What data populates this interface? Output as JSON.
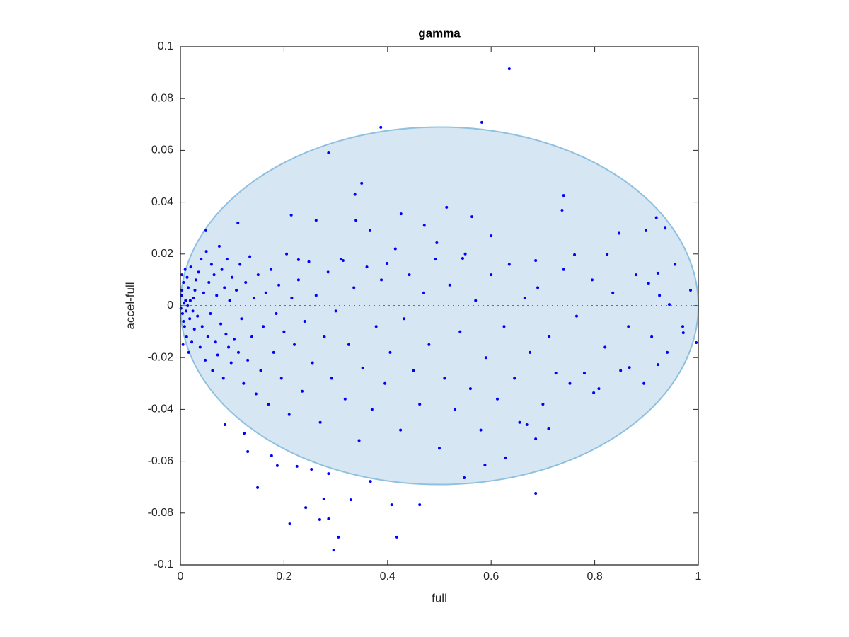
{
  "chart_data": {
    "type": "scatter",
    "title": "gamma",
    "x_label": "full",
    "y_label": "accel-full",
    "xlim": [
      0,
      1
    ],
    "ylim": [
      -0.1,
      0.1
    ],
    "xticks": [
      0,
      0.2,
      0.4,
      0.6,
      0.8,
      1
    ],
    "yticks": [
      -0.1,
      -0.08,
      -0.06,
      -0.04,
      -0.02,
      0,
      0.02,
      0.04,
      0.06,
      0.08,
      0.1
    ],
    "color": "#0000ff",
    "ellipse": {
      "center": [
        0.5,
        0
      ],
      "radii": [
        0.5,
        0.069
      ],
      "fill": "#d6e6f3",
      "stroke": "#8fc0e0"
    },
    "reference_line": {
      "value": 0,
      "color": "#ff3333"
    },
    "x": [
      0.002,
      0.004,
      0.006,
      0.008,
      0.003,
      0.01,
      0.012,
      0.005,
      0.015,
      0.018,
      0.007,
      0.001,
      0.009,
      0.013,
      0.02,
      0.022,
      0.016,
      0.025,
      0.027,
      0.03,
      0.011,
      0.014,
      0.006,
      0.003,
      0.019,
      0.024,
      0.028,
      0.033,
      0.035,
      0.038,
      0.04,
      0.042,
      0.045,
      0.048,
      0.05,
      0.053,
      0.055,
      0.058,
      0.06,
      0.062,
      0.065,
      0.068,
      0.07,
      0.072,
      0.075,
      0.078,
      0.08,
      0.083,
      0.085,
      0.088,
      0.09,
      0.093,
      0.095,
      0.098,
      0.1,
      0.104,
      0.108,
      0.112,
      0.115,
      0.118,
      0.122,
      0.126,
      0.13,
      0.134,
      0.138,
      0.142,
      0.146,
      0.15,
      0.155,
      0.16,
      0.165,
      0.17,
      0.175,
      0.18,
      0.185,
      0.19,
      0.195,
      0.2,
      0.205,
      0.21,
      0.215,
      0.22,
      0.228,
      0.235,
      0.24,
      0.248,
      0.255,
      0.262,
      0.27,
      0.278,
      0.285,
      0.292,
      0.3,
      0.31,
      0.318,
      0.325,
      0.335,
      0.345,
      0.352,
      0.36,
      0.37,
      0.378,
      0.388,
      0.395,
      0.405,
      0.415,
      0.425,
      0.432,
      0.442,
      0.45,
      0.462,
      0.47,
      0.48,
      0.492,
      0.5,
      0.51,
      0.52,
      0.53,
      0.54,
      0.55,
      0.56,
      0.57,
      0.58,
      0.59,
      0.6,
      0.612,
      0.625,
      0.635,
      0.645,
      0.655,
      0.665,
      0.675,
      0.69,
      0.7,
      0.712,
      0.725,
      0.74,
      0.752,
      0.765,
      0.78,
      0.795,
      0.808,
      0.82,
      0.835,
      0.85,
      0.865,
      0.88,
      0.895,
      0.91,
      0.925,
      0.94,
      0.955,
      0.97,
      0.985,
      0.635,
      0.582,
      0.387,
      0.286,
      0.35,
      0.337,
      0.74,
      0.737,
      0.514,
      0.426,
      0.563,
      0.214,
      0.919,
      0.936,
      0.049,
      0.111,
      0.899,
      0.847,
      0.6,
      0.471,
      0.366,
      0.262,
      0.339,
      0.296,
      0.305,
      0.418,
      0.211,
      0.269,
      0.286,
      0.242,
      0.277,
      0.329,
      0.408,
      0.462,
      0.686,
      0.149,
      0.286,
      0.367,
      0.548,
      0.588,
      0.628,
      0.13,
      0.176,
      0.187,
      0.225,
      0.253,
      0.123,
      0.086,
      0.686,
      0.669,
      0.711,
      0.798,
      0.867,
      0.922,
      0.996,
      0.971,
      0.944,
      0.904,
      0.922,
      0.824,
      0.761,
      0.686,
      0.545,
      0.495,
      0.399,
      0.314,
      0.228
    ],
    "values": [
      0.004,
      -0.003,
      0.009,
      -0.008,
      0.012,
      0.002,
      -0.012,
      -0.015,
      0.007,
      -0.005,
      0.001,
      -0.001,
      0.014,
      0.011,
      0.015,
      -0.014,
      -0.018,
      0.003,
      -0.009,
      0.01,
      -0.002,
      0,
      -0.006,
      0.006,
      0.002,
      -0.002,
      0.006,
      -0.004,
      0.013,
      -0.016,
      0.018,
      -0.008,
      0.005,
      -0.021,
      0.021,
      -0.012,
      0.009,
      -0.003,
      0.016,
      -0.025,
      0.012,
      -0.014,
      0.004,
      -0.019,
      0.023,
      -0.007,
      0.014,
      -0.028,
      0.007,
      -0.011,
      0.018,
      -0.016,
      0.002,
      -0.022,
      0.011,
      -0.013,
      0.006,
      -0.018,
      0.016,
      -0.005,
      -0.03,
      0.009,
      -0.021,
      0.019,
      -0.012,
      0.003,
      -0.034,
      0.012,
      -0.025,
      -0.008,
      0.005,
      -0.038,
      0.014,
      -0.018,
      -0.003,
      0.008,
      -0.028,
      -0.01,
      0.02,
      -0.042,
      0.003,
      -0.015,
      0.01,
      -0.033,
      -0.006,
      0.017,
      -0.022,
      0.004,
      -0.045,
      -0.012,
      0.013,
      -0.028,
      -0.002,
      0.018,
      -0.036,
      -0.015,
      0.007,
      -0.052,
      -0.024,
      0.015,
      -0.04,
      -0.008,
      0.01,
      -0.03,
      -0.018,
      0.022,
      -0.048,
      -0.005,
      0.012,
      -0.025,
      -0.038,
      0.005,
      -0.015,
      0.018,
      -0.055,
      -0.028,
      0.008,
      -0.04,
      -0.01,
      0.02,
      -0.032,
      0.002,
      -0.048,
      -0.02,
      0.012,
      -0.036,
      -0.008,
      0.016,
      -0.028,
      -0.045,
      0.003,
      -0.018,
      0.007,
      -0.038,
      -0.012,
      -0.026,
      0.014,
      -0.03,
      -0.004,
      -0.026,
      0.01,
      -0.032,
      -0.016,
      0.005,
      -0.025,
      -0.008,
      0.012,
      -0.03,
      -0.012,
      0.004,
      -0.018,
      0.016,
      -0.008,
      0.006,
      0.0915,
      0.0708,
      0.0689,
      0.059,
      0.0473,
      0.043,
      0.0426,
      0.0369,
      0.038,
      0.0355,
      0.0344,
      0.035,
      0.034,
      0.03,
      0.029,
      0.032,
      0.029,
      0.028,
      0.027,
      0.031,
      0.029,
      0.033,
      0.033,
      -0.0943,
      -0.0893,
      -0.0893,
      -0.0842,
      -0.0825,
      -0.0822,
      -0.0779,
      -0.0746,
      -0.0749,
      -0.0768,
      -0.0768,
      -0.0724,
      -0.0702,
      -0.0648,
      -0.0678,
      -0.0664,
      -0.0615,
      -0.0587,
      -0.0563,
      -0.0579,
      -0.0617,
      -0.062,
      -0.0631,
      -0.0492,
      -0.0459,
      -0.0514,
      -0.0459,
      -0.0475,
      -0.0336,
      -0.0238,
      -0.0227,
      -0.0142,
      -0.0104,
      0.0005,
      0.0087,
      0.0126,
      0.0199,
      0.0197,
      0.0175,
      0.0183,
      0.0243,
      0.0164,
      0.0175,
      0.0178
    ]
  }
}
